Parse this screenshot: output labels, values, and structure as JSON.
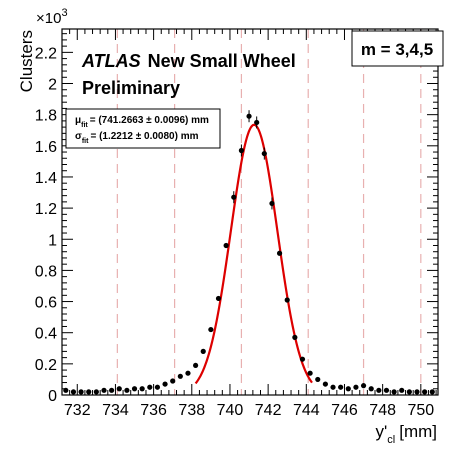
{
  "chart_data": {
    "type": "scatter",
    "xlabel_main": "y'",
    "xlabel_sub": "cl",
    "xlabel_unit": "[mm]",
    "ylabel": "Clusters",
    "y_multiplier": "×10",
    "y_multiplier_exp": "3",
    "xlim": [
      731.2,
      750.9
    ],
    "ylim": [
      0,
      2.35
    ],
    "x_ticks": [
      732,
      734,
      736,
      738,
      740,
      742,
      744,
      746,
      748,
      750
    ],
    "y_ticks": [
      0,
      0.2,
      0.4,
      0.6,
      0.8,
      1,
      1.2,
      1.4,
      1.6,
      1.8,
      2,
      2.2
    ],
    "y_tick_labels": [
      "0",
      "0.2",
      "0.4",
      "0.6",
      "0.8",
      "1",
      "1.2",
      "1.4",
      "1.6",
      "1.8",
      "2",
      "2.2"
    ],
    "grid": false,
    "reference_lines_x": [
      734.1,
      737.1,
      740.6,
      744.1,
      747.0,
      750.0
    ],
    "reference_line_color": "#e8b0b0",
    "fit_color": "#dd0000",
    "marker_color": "#000000",
    "atlas_label": "ATLAS",
    "experiment_label": "New Small Wheel",
    "status_label": "Preliminary",
    "multiplet_label": "m = 3,4,5",
    "fit_box": {
      "mu_symbol": "μ",
      "mu_sub": "fit",
      "mu_text": "= (741.2663  ± 0.0096) mm",
      "sigma_symbol": "σ",
      "sigma_sub": "fit",
      "sigma_text": "= (1.2212  ± 0.0080) mm"
    },
    "fit": {
      "model": "gaussian",
      "mean": 741.2663,
      "sigma": 1.2212,
      "amplitude": 1.735,
      "x_range": [
        738.2,
        744.3
      ]
    },
    "series": [
      {
        "x": [
          731.4,
          731.8,
          732.2,
          732.6,
          733.0,
          733.4,
          733.8,
          734.2,
          734.6,
          735.0,
          735.4,
          735.8,
          736.2,
          736.6,
          737.0,
          737.4,
          737.8,
          738.2,
          738.6,
          739.0,
          739.4,
          739.8,
          740.2,
          740.6,
          741.0,
          741.4,
          741.8,
          742.2,
          742.6,
          743.0,
          743.4,
          743.8,
          744.2,
          744.6,
          745.0,
          745.4,
          745.8,
          746.2,
          746.6,
          747.0,
          747.4,
          747.8,
          748.2,
          748.6,
          749.0,
          749.4,
          749.8,
          750.2,
          750.6
        ],
        "y": [
          0.03,
          0.02,
          0.02,
          0.02,
          0.02,
          0.03,
          0.03,
          0.04,
          0.03,
          0.04,
          0.04,
          0.05,
          0.05,
          0.07,
          0.09,
          0.12,
          0.14,
          0.19,
          0.28,
          0.42,
          0.62,
          0.96,
          1.27,
          1.57,
          1.79,
          1.75,
          1.55,
          1.23,
          0.91,
          0.61,
          0.37,
          0.23,
          0.14,
          0.1,
          0.07,
          0.05,
          0.05,
          0.04,
          0.05,
          0.06,
          0.04,
          0.03,
          0.03,
          0.02,
          0.03,
          0.02,
          0.02,
          0.02,
          0.02
        ]
      }
    ]
  }
}
